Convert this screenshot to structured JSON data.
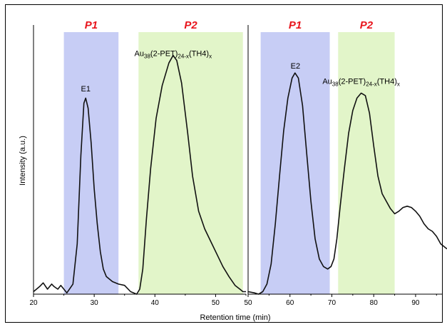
{
  "chart_data": [
    {
      "type": "line",
      "panel": "left",
      "xlabel": "Retention time (min)",
      "ylabel": "Intensity (a.u.)",
      "xlim": [
        20,
        55
      ],
      "ylim": [
        0,
        1
      ],
      "xticks": [
        20,
        30,
        40,
        50
      ],
      "grid": false,
      "regions": [
        {
          "label": "P1",
          "x": [
            25,
            34
          ],
          "color": "#c7cdf5"
        },
        {
          "label": "P2",
          "x": [
            37.3,
            54.5
          ],
          "color": "#e2f5c9"
        }
      ],
      "annotations": [
        {
          "text": "E1",
          "x": 28.6,
          "y": 0.79
        },
        {
          "text": {
            "main": "Au",
            "s1": "38",
            "mid": "(2-PET)",
            "s2": "24-x",
            "end": "(TH4)",
            "s3": "x"
          },
          "x": 43,
          "y": 0.93
        }
      ],
      "series": [
        {
          "values": [
            [
              20,
              0.01
            ],
            [
              21,
              0.03
            ],
            [
              21.6,
              0.045
            ],
            [
              22.3,
              0.02
            ],
            [
              23,
              0.04
            ],
            [
              23.4,
              0.03
            ],
            [
              24,
              0.02
            ],
            [
              24.5,
              0.035
            ],
            [
              25,
              0.02
            ],
            [
              25.5,
              0.005
            ],
            [
              26.5,
              0.04
            ],
            [
              27.2,
              0.2
            ],
            [
              27.8,
              0.55
            ],
            [
              28.3,
              0.76
            ],
            [
              28.6,
              0.78
            ],
            [
              29,
              0.74
            ],
            [
              29.5,
              0.6
            ],
            [
              30,
              0.42
            ],
            [
              30.5,
              0.28
            ],
            [
              31,
              0.17
            ],
            [
              31.5,
              0.1
            ],
            [
              32,
              0.07
            ],
            [
              33,
              0.05
            ],
            [
              34,
              0.04
            ],
            [
              35,
              0.035
            ],
            [
              36,
              0.01
            ],
            [
              37,
              0.0
            ],
            [
              37.5,
              0.02
            ],
            [
              38,
              0.1
            ],
            [
              38.6,
              0.3
            ],
            [
              39.3,
              0.5
            ],
            [
              40.2,
              0.7
            ],
            [
              41.2,
              0.83
            ],
            [
              42.3,
              0.92
            ],
            [
              43,
              0.95
            ],
            [
              43.6,
              0.93
            ],
            [
              44.4,
              0.84
            ],
            [
              45.4,
              0.64
            ],
            [
              46.2,
              0.47
            ],
            [
              47.2,
              0.33
            ],
            [
              48.2,
              0.26
            ],
            [
              49.2,
              0.21
            ],
            [
              50.2,
              0.16
            ],
            [
              51.2,
              0.11
            ],
            [
              52.2,
              0.07
            ],
            [
              53.2,
              0.035
            ],
            [
              54,
              0.02
            ],
            [
              54.5,
              0.01
            ],
            [
              55,
              0.01
            ]
          ]
        }
      ]
    },
    {
      "type": "line",
      "panel": "right",
      "xlim": [
        50,
        97.5
      ],
      "ylim": [
        0,
        1
      ],
      "xticks": [
        50,
        60,
        70,
        80,
        90
      ],
      "grid": false,
      "regions": [
        {
          "label": "P1",
          "x": [
            53,
            69.5
          ],
          "color": "#c7cdf5"
        },
        {
          "label": "P2",
          "x": [
            71.5,
            85
          ],
          "color": "#e2f5c9"
        }
      ],
      "annotations": [
        {
          "text": "E2",
          "x": 61.3,
          "y": 0.88
        },
        {
          "text": {
            "main": "Au",
            "s1": "38",
            "mid": "(2-PET)",
            "s2": "24-x",
            "end": "(TH4)",
            "s3": "x"
          },
          "x": 77,
          "y": 0.82
        }
      ],
      "series": [
        {
          "values": [
            [
              50,
              0.01
            ],
            [
              51.5,
              0.005
            ],
            [
              52.5,
              0.0
            ],
            [
              53.5,
              0.01
            ],
            [
              54.5,
              0.04
            ],
            [
              55.5,
              0.12
            ],
            [
              56.5,
              0.28
            ],
            [
              57.5,
              0.47
            ],
            [
              58.5,
              0.65
            ],
            [
              59.5,
              0.78
            ],
            [
              60.5,
              0.86
            ],
            [
              61.2,
              0.88
            ],
            [
              62,
              0.86
            ],
            [
              63,
              0.75
            ],
            [
              64,
              0.56
            ],
            [
              65,
              0.37
            ],
            [
              66,
              0.22
            ],
            [
              67,
              0.14
            ],
            [
              68,
              0.11
            ],
            [
              69,
              0.1
            ],
            [
              69.8,
              0.11
            ],
            [
              70.5,
              0.14
            ],
            [
              71.2,
              0.22
            ],
            [
              72,
              0.35
            ],
            [
              73,
              0.5
            ],
            [
              74,
              0.64
            ],
            [
              75,
              0.73
            ],
            [
              76,
              0.78
            ],
            [
              77,
              0.8
            ],
            [
              78,
              0.79
            ],
            [
              79,
              0.72
            ],
            [
              80,
              0.59
            ],
            [
              81,
              0.47
            ],
            [
              82,
              0.4
            ],
            [
              83,
              0.37
            ],
            [
              84,
              0.34
            ],
            [
              85,
              0.32
            ],
            [
              86,
              0.33
            ],
            [
              87,
              0.345
            ],
            [
              88,
              0.35
            ],
            [
              89,
              0.345
            ],
            [
              90,
              0.33
            ],
            [
              91,
              0.31
            ],
            [
              92,
              0.28
            ],
            [
              93,
              0.26
            ],
            [
              94,
              0.25
            ],
            [
              95,
              0.23
            ],
            [
              96,
              0.2
            ],
            [
              97.5,
              0.18
            ]
          ]
        }
      ]
    }
  ]
}
